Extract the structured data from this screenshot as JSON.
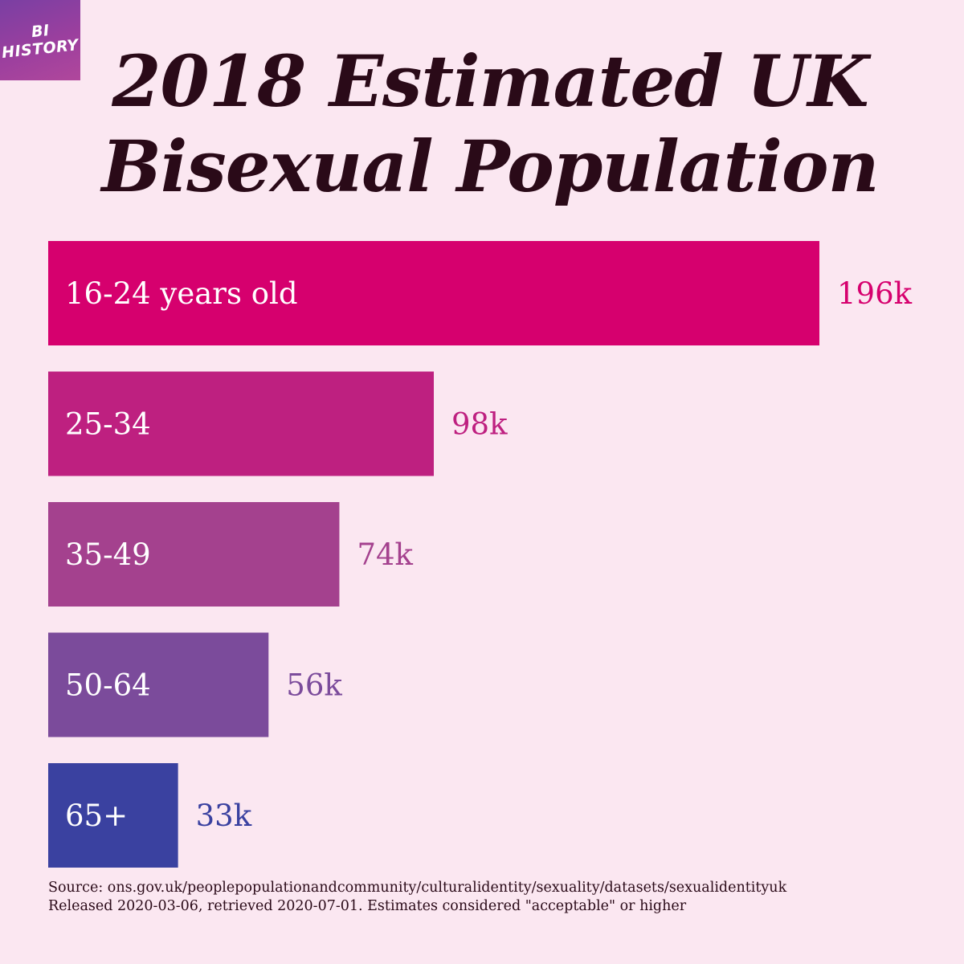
{
  "logo": {
    "line1": "BI",
    "line2": "HISTORY"
  },
  "title_line1": "2018 Estimated UK",
  "title_line2": "Bisexual Population",
  "source_line1": "Source: ons.gov.uk/peoplepopulationandcommunity/culturalidentity/sexuality/datasets/sexualidentityuk",
  "source_line2": "Released 2020-03-06, retrieved 2020-07-01. Estimates considered \"acceptable\" or higher",
  "colors": {
    "background": "#fbe7f1",
    "title": "#2a0a18"
  },
  "chart_data": {
    "type": "bar",
    "orientation": "horizontal",
    "title": "2018 Estimated UK Bisexual Population",
    "categories": [
      "16-24 years old",
      "25-34",
      "35-49",
      "50-64",
      "65+"
    ],
    "values": [
      196,
      98,
      74,
      56,
      33
    ],
    "value_labels": [
      "196k",
      "98k",
      "74k",
      "56k",
      "33k"
    ],
    "unit": "thousand",
    "colors": [
      "#d6006e",
      "#be2080",
      "#a4418e",
      "#7b4b9b",
      "#3a41a0"
    ],
    "xlim": [
      0,
      196
    ],
    "grid": false,
    "legend": "none",
    "xlabel": "",
    "ylabel": ""
  }
}
